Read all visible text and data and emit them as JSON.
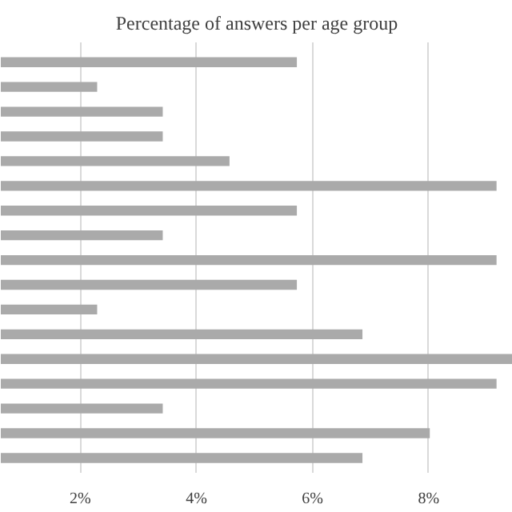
{
  "chart_data": {
    "type": "bar",
    "orientation": "horizontal",
    "title": "Percentage of answers per age group",
    "categories": [
      null,
      null,
      null,
      null,
      null,
      null,
      null,
      null,
      null,
      null,
      null,
      null,
      null,
      null,
      null,
      null,
      null
    ],
    "values": [
      5.73,
      2.29,
      3.42,
      3.42,
      4.57,
      9.17,
      5.73,
      3.42,
      9.17,
      5.73,
      2.29,
      6.86,
      9.45,
      9.17,
      3.42,
      8.02,
      6.86
    ],
    "color": "#aaaaaa",
    "xlim": [
      0.63,
      9.45
    ],
    "xticks": [
      {
        "value": 2,
        "label": "2%"
      },
      {
        "value": 4,
        "label": "4%"
      },
      {
        "value": 6,
        "label": "6%"
      },
      {
        "value": 8,
        "label": "8%"
      }
    ],
    "grid": "x"
  }
}
